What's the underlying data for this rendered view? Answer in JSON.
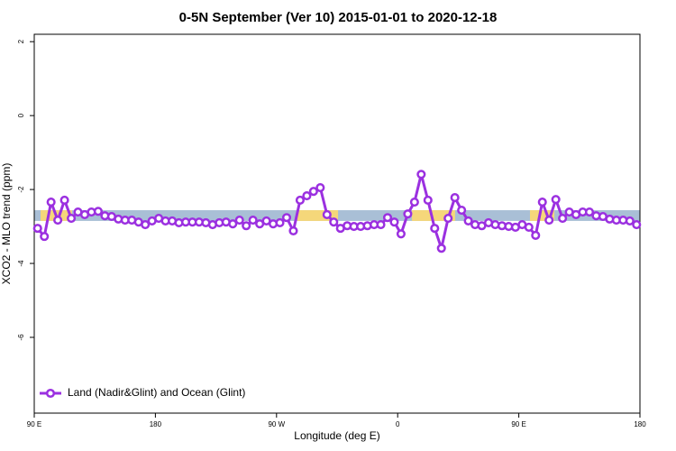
{
  "chart_data": {
    "type": "line",
    "title": "0-5N September (Ver 10)   2015-01-01 to 2020-12-18",
    "x_label": "Longitude (deg E)",
    "y_label": "XCO2 - MLO trend (ppm)",
    "xlim": [
      90,
      540
    ],
    "xticks": [
      {
        "value": 90,
        "label": "90 E"
      },
      {
        "value": 180,
        "label": "180"
      },
      {
        "value": 270,
        "label": "90 W"
      },
      {
        "value": 360,
        "label": "0"
      },
      {
        "value": 450,
        "label": "90 E"
      },
      {
        "value": 540,
        "label": "180"
      }
    ],
    "ylim": [
      -8.05,
      2.2
    ],
    "yticks": [
      -6,
      -4,
      -2,
      0,
      2
    ],
    "legend_position": "bottom-left",
    "band": {
      "ylim": [
        -2.85,
        -2.56
      ],
      "color": "#a9bfd6",
      "segment_color": "#f5d77a",
      "segments": [
        [
          94.7,
          118
        ],
        [
          285.5,
          315.7
        ],
        [
          370.6,
          402.7
        ],
        [
          458.3,
          476.4
        ]
      ]
    },
    "x": [
      92.5,
      97.5,
      102.5,
      107.5,
      112.5,
      117.5,
      122.5,
      127.5,
      132.5,
      137.5,
      142.5,
      147.5,
      152.5,
      157.5,
      162.5,
      167.5,
      172.5,
      177.5,
      182.5,
      187.5,
      192.5,
      197.5,
      202.5,
      207.5,
      212.5,
      217.5,
      222.5,
      227.5,
      232.5,
      237.5,
      242.5,
      247.5,
      252.5,
      257.5,
      262.5,
      267.5,
      272.5,
      277.5,
      282.5,
      287.5,
      292.5,
      297.5,
      302.5,
      307.5,
      312.5,
      317.5,
      322.5,
      327.5,
      332.5,
      337.5,
      342.5,
      347.5,
      352.5,
      357.5,
      362.5,
      367.5,
      372.5,
      377.5,
      382.5,
      387.5,
      392.5,
      397.5,
      402.5,
      407.5,
      412.5,
      417.5,
      422.5,
      427.5,
      432.5,
      437.5,
      442.5,
      447.5,
      452.5,
      457.5,
      462.5,
      467.5,
      472.5,
      477.5,
      482.5,
      487.5,
      492.5,
      497.5,
      502.5,
      507.5,
      512.5,
      517.5,
      522.5,
      527.5,
      532.5,
      537.5
    ],
    "series": [
      {
        "name": "Land (Nadir&Glint) and Ocean (Glint)",
        "color": "#9b30e0",
        "values": [
          -3.05,
          -3.27,
          -2.34,
          -2.83,
          -2.29,
          -2.78,
          -2.61,
          -2.68,
          -2.61,
          -2.59,
          -2.71,
          -2.73,
          -2.8,
          -2.83,
          -2.83,
          -2.88,
          -2.95,
          -2.85,
          -2.78,
          -2.85,
          -2.85,
          -2.9,
          -2.88,
          -2.88,
          -2.88,
          -2.9,
          -2.95,
          -2.9,
          -2.88,
          -2.93,
          -2.83,
          -2.98,
          -2.83,
          -2.93,
          -2.85,
          -2.93,
          -2.9,
          -2.76,
          -3.12,
          -2.29,
          -2.17,
          -2.05,
          -1.95,
          -2.68,
          -2.88,
          -3.05,
          -2.98,
          -3.0,
          -3.0,
          -2.98,
          -2.95,
          -2.95,
          -2.76,
          -2.88,
          -3.2,
          -2.66,
          -2.34,
          -1.59,
          -2.29,
          -3.05,
          -3.59,
          -2.78,
          -2.22,
          -2.56,
          -2.85,
          -2.95,
          -2.98,
          -2.9,
          -2.95,
          -2.98,
          -3.0,
          -3.02,
          -2.95,
          -3.02,
          -3.24,
          -2.34,
          -2.83,
          -2.27,
          -2.78,
          -2.61,
          -2.68,
          -2.61,
          -2.61,
          -2.71,
          -2.73,
          -2.8,
          -2.83,
          -2.83,
          -2.85,
          -2.95
        ]
      }
    ]
  }
}
